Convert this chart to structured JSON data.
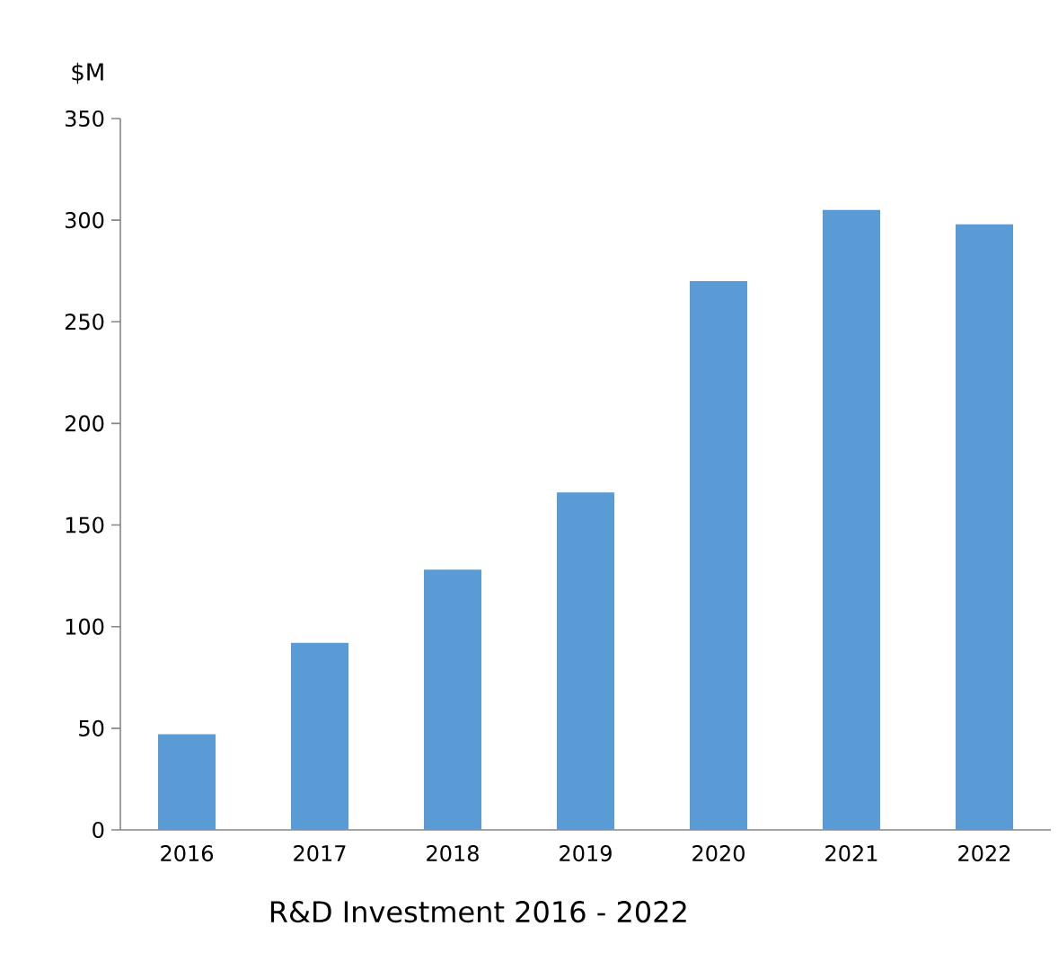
{
  "chart_data": {
    "type": "bar",
    "title": "R&D Investment 2016 - 2022",
    "ylabel": "$M",
    "categories": [
      "2016",
      "2017",
      "2018",
      "2019",
      "2020",
      "2021",
      "2022"
    ],
    "values": [
      47,
      92,
      128,
      166,
      270,
      305,
      298
    ],
    "color": "#5b9bd5",
    "ylim": [
      0,
      350
    ],
    "yticks": [
      0,
      50,
      100,
      150,
      200,
      250,
      300,
      350
    ],
    "grid": false
  }
}
